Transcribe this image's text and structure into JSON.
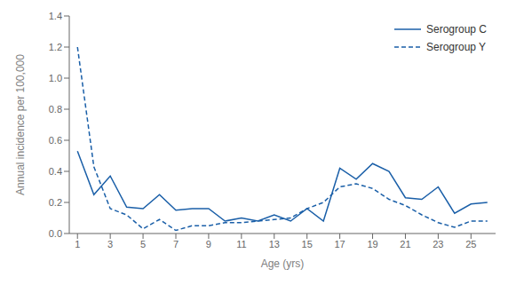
{
  "chart_data": {
    "type": "line",
    "x": [
      1,
      2,
      3,
      4,
      5,
      6,
      7,
      8,
      9,
      10,
      11,
      12,
      13,
      14,
      15,
      16,
      17,
      18,
      19,
      20,
      21,
      22,
      23,
      24,
      25,
      26
    ],
    "series": [
      {
        "name": "Serogroup C",
        "color": "#1a5fa8",
        "line_style": "solid",
        "values": [
          0.53,
          0.25,
          0.37,
          0.17,
          0.16,
          0.25,
          0.15,
          0.16,
          0.16,
          0.08,
          0.1,
          0.08,
          0.12,
          0.08,
          0.16,
          0.08,
          0.42,
          0.35,
          0.45,
          0.4,
          0.23,
          0.22,
          0.3,
          0.13,
          0.19,
          0.2
        ]
      },
      {
        "name": "Serogroup Y",
        "color": "#1a5fa8",
        "line_style": "dashed",
        "values": [
          1.2,
          0.43,
          0.16,
          0.12,
          0.03,
          0.09,
          0.02,
          0.05,
          0.05,
          0.07,
          0.07,
          0.08,
          0.09,
          0.1,
          0.16,
          0.2,
          0.3,
          0.32,
          0.29,
          0.22,
          0.18,
          0.12,
          0.07,
          0.04,
          0.08,
          0.08
        ]
      }
    ],
    "xlabel": "Age (yrs)",
    "ylabel": "Annual incidence per 100,000",
    "xlim": [
      0.5,
      26.5
    ],
    "ylim": [
      0,
      1.4
    ],
    "xticks": [
      1,
      3,
      5,
      7,
      9,
      11,
      13,
      15,
      17,
      19,
      21,
      23,
      25
    ],
    "yticks": [
      {
        "value": 0,
        "label": "0.0"
      },
      0.2,
      0.4,
      0.6,
      0.8,
      {
        "value": 1.0,
        "label": "1.0"
      },
      1.2,
      1.4
    ],
    "legend": "upper right",
    "grid": false
  }
}
